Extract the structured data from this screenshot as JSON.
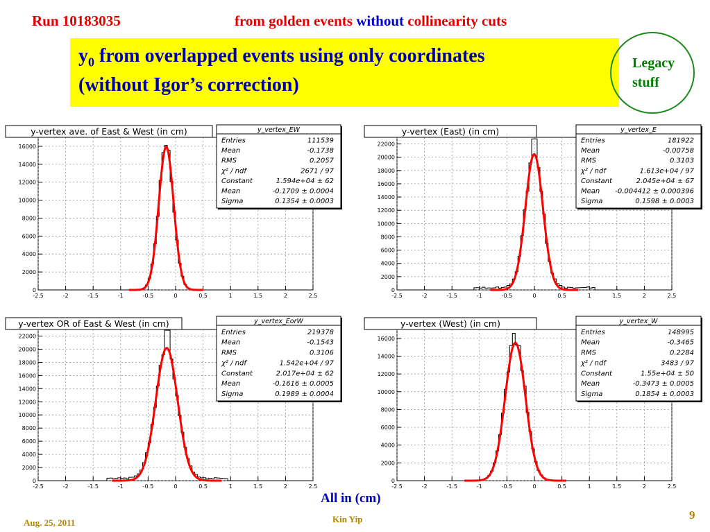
{
  "header": {
    "run": "Run 10183035",
    "desc_part1": "from golden events",
    "desc_part2": "without",
    "desc_part3": "collinearity cuts"
  },
  "title": {
    "line1_main": "y",
    "line1_sub": "0",
    "line1_rest": "from overlapped events using only coordinates",
    "line2": "(without Igor’s correction)"
  },
  "legacy": {
    "line1": "Legacy",
    "line2": "stuff"
  },
  "footer": {
    "units": "All in (cm)",
    "date": "Aug. 25, 2011",
    "author": "Kin Yip",
    "page": "9"
  },
  "colors": {
    "header_red": "#e00000",
    "blue": "#0000cc",
    "title_bg": "#ffff00",
    "fit": "#ff0000",
    "legacy_green": "#008000"
  },
  "chart_data": [
    {
      "type": "histogram",
      "title": "y-vertex ave. of East & West (in cm)",
      "xlim": [
        -2.5,
        2.5
      ],
      "xticks": [
        "-2.5",
        "-2",
        "-1.5",
        "-1",
        "-0.5",
        "0",
        "0.5",
        "1",
        "1.5",
        "2",
        "2.5"
      ],
      "ylim": [
        0,
        17000
      ],
      "yticks": [
        "0",
        "2000",
        "4000",
        "6000",
        "8000",
        "10000",
        "12000",
        "14000",
        "16000"
      ],
      "stats": {
        "name": "y_vertex_EW",
        "rows": [
          [
            "Entries",
            "111539"
          ],
          [
            "Mean",
            "-0.1738"
          ],
          [
            "RMS",
            "0.2057"
          ],
          [
            "χ² / ndf",
            "2671 / 97"
          ],
          [
            "Constant",
            "1.594e+04 ± 62"
          ],
          [
            "Mean",
            "-0.1709 ± 0.0004"
          ],
          [
            "Sigma",
            "0.1354 ± 0.0003"
          ]
        ]
      },
      "fit": {
        "constant": 15940,
        "mean": -0.1709,
        "sigma": 0.1354
      },
      "hist_peak": 16300,
      "hist_peak_x": -0.17
    },
    {
      "type": "histogram",
      "title": "y-vertex (East) (in cm)",
      "xlim": [
        -2.5,
        2.5
      ],
      "xticks": [
        "-2.5",
        "-2",
        "-1.5",
        "-1",
        "-0.5",
        "0",
        "0.5",
        "1",
        "1.5",
        "2",
        "2.5"
      ],
      "ylim": [
        0,
        23000
      ],
      "yticks": [
        "0",
        "2000",
        "4000",
        "6000",
        "8000",
        "10000",
        "12000",
        "14000",
        "16000",
        "18000",
        "20000",
        "22000"
      ],
      "stats": {
        "name": "y_vertex_E",
        "rows": [
          [
            "Entries",
            "181922"
          ],
          [
            "Mean",
            "-0.00758"
          ],
          [
            "RMS",
            "0.3103"
          ],
          [
            "χ² / ndf",
            "1.613e+04 / 97"
          ],
          [
            "Constant",
            "2.045e+04 ± 67"
          ],
          [
            "Mean",
            "-0.004412 ± 0.000396"
          ],
          [
            "Sigma",
            "0.1598 ± 0.0003"
          ]
        ]
      },
      "fit": {
        "constant": 20450,
        "mean": -0.004412,
        "sigma": 0.1598
      },
      "hist_peak": 22000,
      "hist_peak_x": 0.0
    },
    {
      "type": "histogram",
      "title": "y-vertex OR of East & West (in cm)",
      "xlim": [
        -2.5,
        2.5
      ],
      "xticks": [
        "-2.5",
        "-2",
        "-1.5",
        "-1",
        "-0.5",
        "0",
        "0.5",
        "1",
        "1.5",
        "2",
        "2.5"
      ],
      "ylim": [
        0,
        23000
      ],
      "yticks": [
        "0",
        "2000",
        "4000",
        "6000",
        "8000",
        "10000",
        "12000",
        "14000",
        "16000",
        "18000",
        "20000",
        "22000"
      ],
      "stats": {
        "name": "y_vertex_EorW",
        "rows": [
          [
            "Entries",
            "219378"
          ],
          [
            "Mean",
            "-0.1543"
          ],
          [
            "RMS",
            "0.3106"
          ],
          [
            "χ² / ndf",
            "1.542e+04 / 97"
          ],
          [
            "Constant",
            "2.017e+04 ± 62"
          ],
          [
            "Mean",
            "-0.1616 ± 0.0005"
          ],
          [
            "Sigma",
            "0.1989 ± 0.0004"
          ]
        ]
      },
      "fit": {
        "constant": 20170,
        "mean": -0.1616,
        "sigma": 0.1989
      },
      "hist_peak": 22700,
      "hist_peak_x": -0.17
    },
    {
      "type": "histogram",
      "title": "y-vertex (West) (in cm)",
      "xlim": [
        -2.5,
        2.5
      ],
      "xticks": [
        "-2.5",
        "-2",
        "-1.5",
        "-1",
        "-0.5",
        "0",
        "0.5",
        "1",
        "1.5",
        "2",
        "2.5"
      ],
      "ylim": [
        0,
        17000
      ],
      "yticks": [
        "0",
        "2000",
        "4000",
        "6000",
        "8000",
        "10000",
        "12000",
        "14000",
        "16000"
      ],
      "stats": {
        "name": "y_vertex_W",
        "rows": [
          [
            "Entries",
            "148995"
          ],
          [
            "Mean",
            "-0.3465"
          ],
          [
            "RMS",
            "0.2284"
          ],
          [
            "χ² / ndf",
            "3483 / 97"
          ],
          [
            "Constant",
            "1.55e+04 ± 50"
          ],
          [
            "Mean",
            "-0.3473 ± 0.0005"
          ],
          [
            "Sigma",
            "0.1854 ± 0.0003"
          ]
        ]
      },
      "fit": {
        "constant": 15500,
        "mean": -0.3473,
        "sigma": 0.1854
      },
      "hist_peak": 16000,
      "hist_peak_x": -0.4
    }
  ]
}
